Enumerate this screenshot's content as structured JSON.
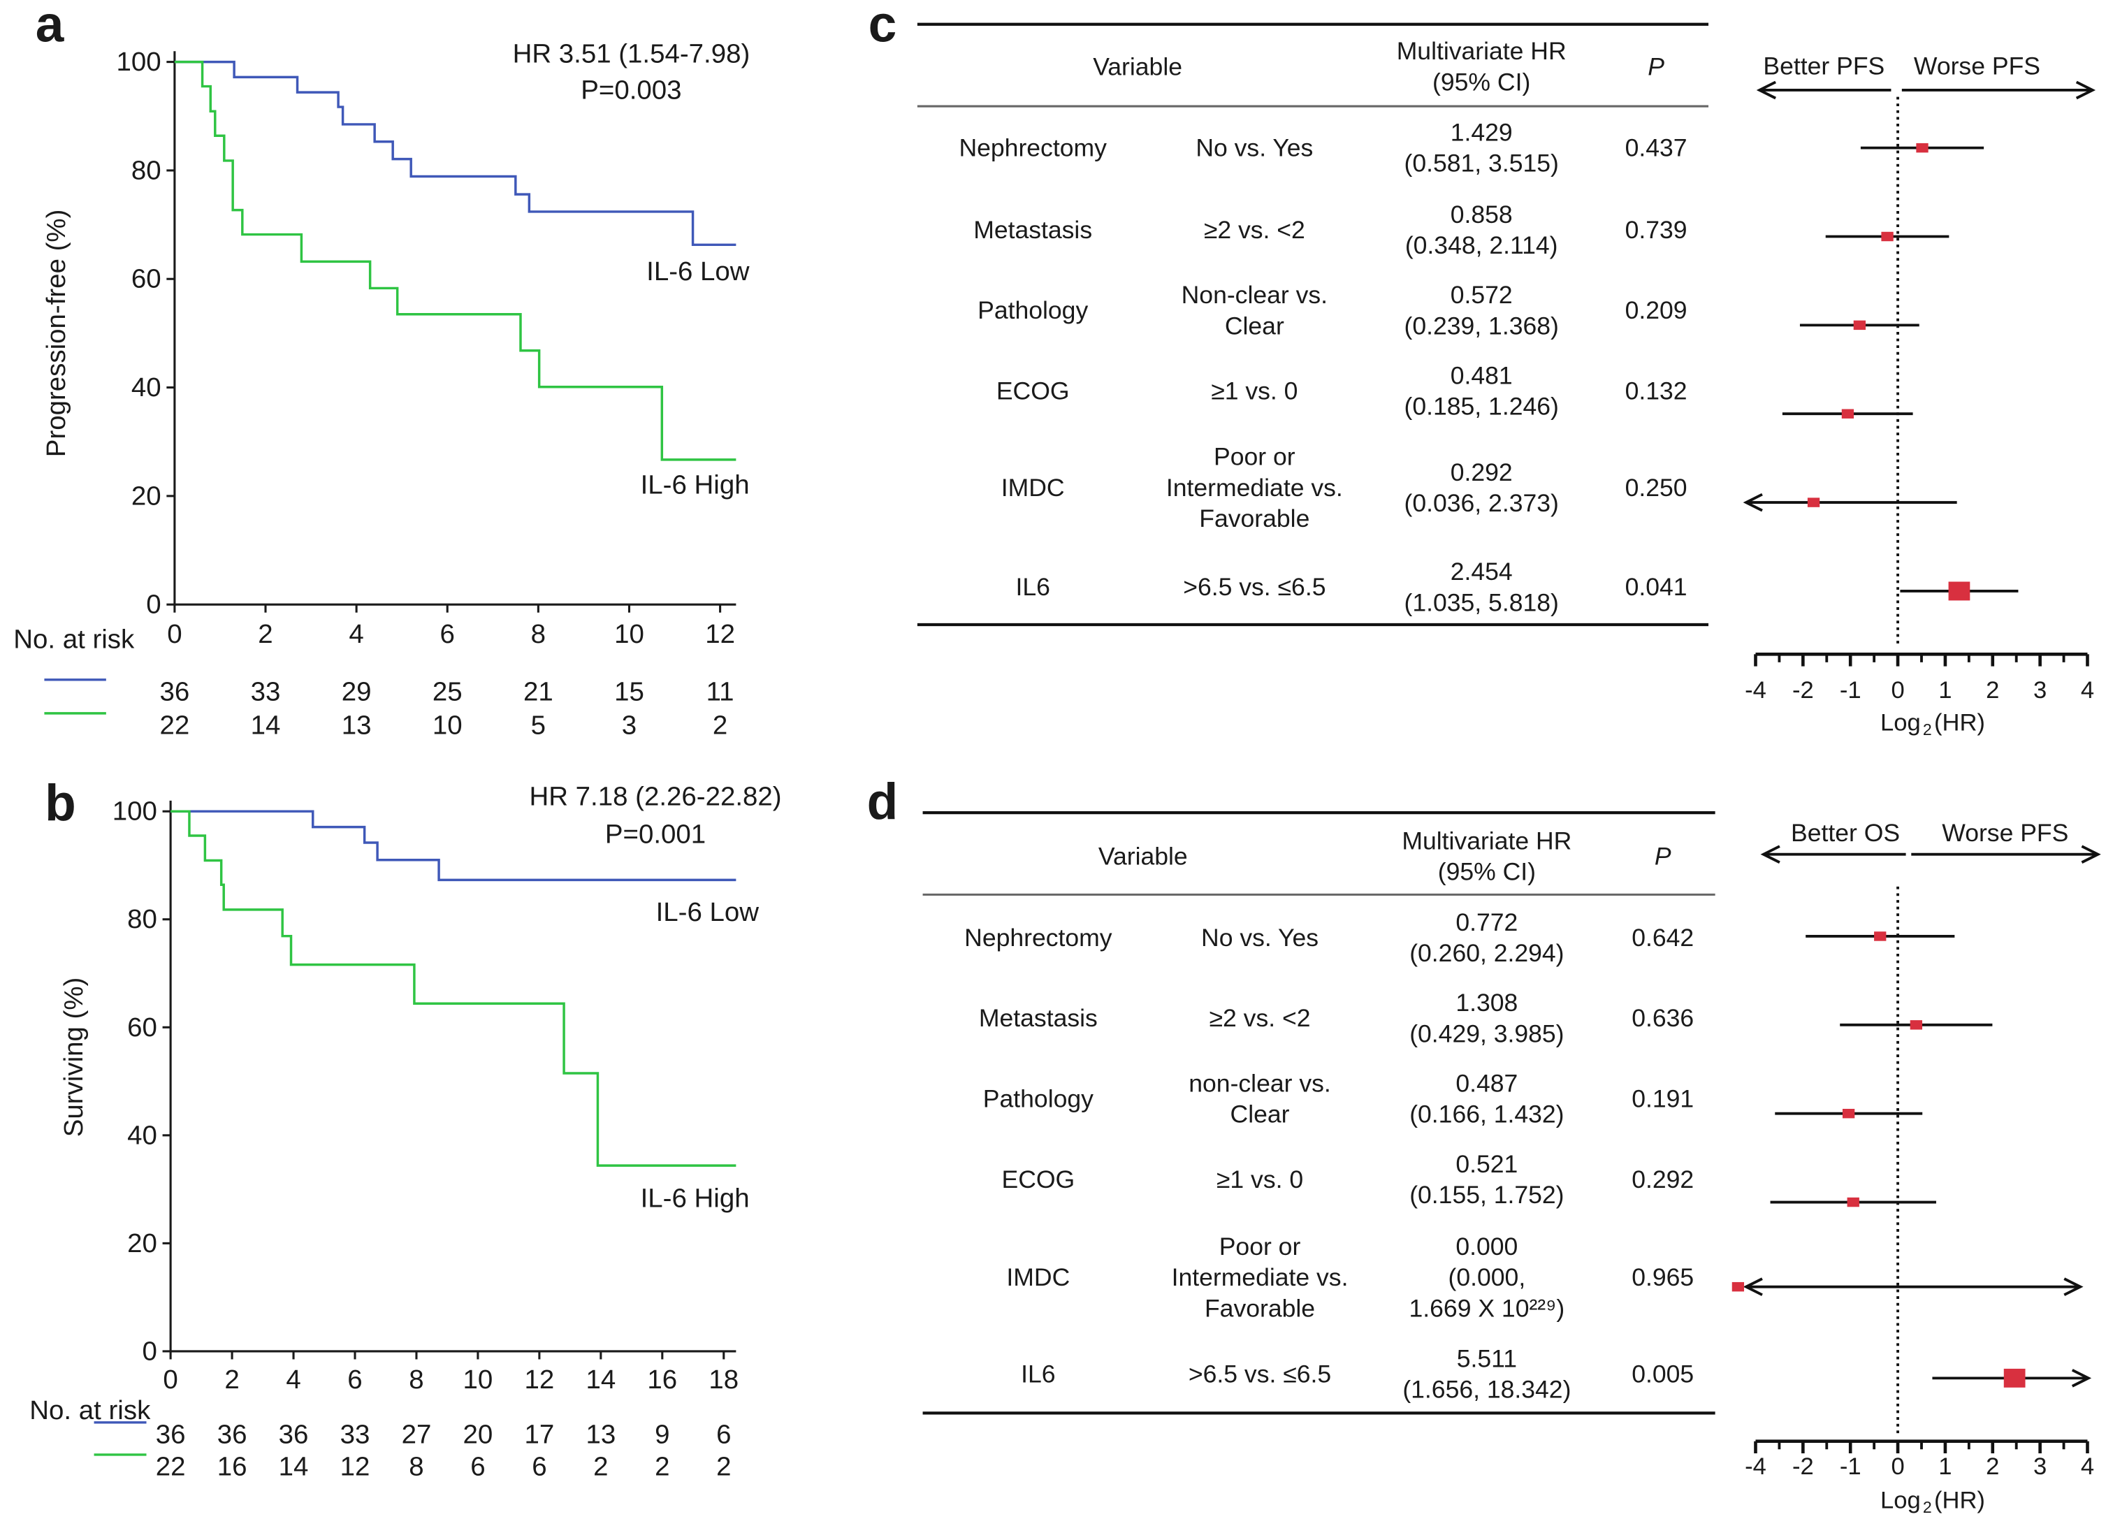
{
  "panel_labels": [
    "a",
    "b",
    "c",
    "d"
  ],
  "colors": {
    "low": "#3f58b8",
    "high": "#2fc443",
    "marker": "#d8303f",
    "axis": "#1a1a1a"
  },
  "chart_data": [
    {
      "type": "line",
      "panel": "a",
      "ylabel": "Progression-free (%)",
      "xlim": [
        0,
        12.35
      ],
      "ylim": [
        0,
        100
      ],
      "x_ticks": [
        "0",
        "2",
        "4",
        "6",
        "8",
        "10",
        "12"
      ],
      "y_ticks": [
        "0",
        "20",
        "40",
        "60",
        "80",
        "100"
      ],
      "annotation": [
        "HR 3.51 (1.54-7.98)",
        "P=0.003"
      ],
      "risk_title": "No. at risk",
      "series": [
        {
          "name": "IL-6 Low",
          "color_key": "low",
          "steps": [
            [
              0,
              100
            ],
            [
              1.31,
              97.2
            ],
            [
              2.7,
              94.4
            ],
            [
              3.6,
              91.7
            ],
            [
              3.7,
              88.5
            ],
            [
              4.4,
              85.3
            ],
            [
              4.8,
              82.1
            ],
            [
              5.2,
              78.9
            ],
            [
              7.5,
              75.6
            ],
            [
              7.8,
              72.4
            ],
            [
              11.4,
              66.3
            ]
          ],
          "at_risk": [
            "36",
            "33",
            "29",
            "25",
            "21",
            "15",
            "11"
          ]
        },
        {
          "name": "IL-6 High",
          "color_key": "high",
          "steps": [
            [
              0,
              100
            ],
            [
              0.61,
              95.5
            ],
            [
              0.79,
              90.9
            ],
            [
              0.89,
              86.4
            ],
            [
              1.09,
              81.8
            ],
            [
              1.28,
              72.7
            ],
            [
              1.49,
              68.2
            ],
            [
              2.79,
              63.2
            ],
            [
              4.3,
              58.3
            ],
            [
              4.9,
              53.5
            ],
            [
              7.61,
              46.8
            ],
            [
              8.02,
              40.1
            ],
            [
              10.72,
              26.7
            ]
          ],
          "at_risk": [
            "22",
            "14",
            "13",
            "10",
            "5",
            "3",
            "2"
          ]
        }
      ]
    },
    {
      "type": "line",
      "panel": "b",
      "ylabel": "Surviving (%)",
      "xlim": [
        0,
        18.4
      ],
      "ylim": [
        0,
        100
      ],
      "x_ticks": [
        "0",
        "2",
        "4",
        "6",
        "8",
        "10",
        "12",
        "14",
        "16",
        "18"
      ],
      "y_ticks": [
        "0",
        "20",
        "40",
        "60",
        "80",
        "100"
      ],
      "annotation": [
        "HR 7.18 (2.26-22.82)",
        "P=0.001"
      ],
      "risk_title": "No. at risk",
      "series": [
        {
          "name": "IL-6 Low",
          "color_key": "low",
          "steps": [
            [
              0,
              100
            ],
            [
              4.63,
              97.1
            ],
            [
              6.31,
              94.2
            ],
            [
              6.73,
              91.0
            ],
            [
              8.73,
              87.3
            ]
          ],
          "at_risk": [
            "36",
            "36",
            "36",
            "33",
            "27",
            "20",
            "17",
            "13",
            "9",
            "6"
          ]
        },
        {
          "name": "IL-6 High",
          "color_key": "high",
          "steps": [
            [
              0,
              100
            ],
            [
              0.61,
              95.5
            ],
            [
              1.12,
              90.9
            ],
            [
              1.65,
              86.4
            ],
            [
              1.73,
              81.8
            ],
            [
              3.64,
              76.9
            ],
            [
              3.92,
              71.6
            ],
            [
              7.93,
              64.4
            ],
            [
              12.8,
              51.5
            ],
            [
              13.9,
              34.4
            ]
          ],
          "at_risk": [
            "22",
            "16",
            "14",
            "12",
            "8",
            "6",
            "6",
            "2",
            "2",
            "2"
          ]
        }
      ]
    },
    {
      "type": "forest",
      "panel": "c",
      "headers": {
        "variable": "Variable",
        "hr": [
          "Multivariate HR",
          "(95% CI)"
        ],
        "p": "P"
      },
      "direction_labels": [
        "Better PFS",
        "Worse PFS"
      ],
      "x_tick_labels": [
        "-4",
        "-2",
        "-1",
        "0",
        "1",
        "2",
        "3",
        "4"
      ],
      "xlabel": "Log",
      "xlabel_sub": "2",
      "xlabel_tail": "(HR)",
      "rows": [
        {
          "variable": "Nephrectomy",
          "comparison": [
            "No vs. Yes"
          ],
          "hr_lines": [
            "1.429",
            "(0.581, 3.515)"
          ],
          "p": "0.437",
          "hr": 1.429,
          "lo": 0.581,
          "hi": 3.515,
          "big": false
        },
        {
          "variable": "Metastasis",
          "comparison": [
            "≥2 vs. <2"
          ],
          "hr_lines": [
            "0.858",
            "(0.348, 2.114)"
          ],
          "p": "0.739",
          "hr": 0.858,
          "lo": 0.348,
          "hi": 2.114,
          "big": false
        },
        {
          "variable": "Pathology",
          "comparison": [
            "Non-clear vs.",
            "Clear"
          ],
          "hr_lines": [
            "0.572",
            "(0.239, 1.368)"
          ],
          "p": "0.209",
          "hr": 0.572,
          "lo": 0.239,
          "hi": 1.368,
          "big": false
        },
        {
          "variable": "ECOG",
          "comparison": [
            "≥1 vs. 0"
          ],
          "hr_lines": [
            "0.481",
            "(0.185, 1.246)"
          ],
          "p": "0.132",
          "hr": 0.481,
          "lo": 0.185,
          "hi": 1.246,
          "big": false
        },
        {
          "variable": "IMDC",
          "comparison": [
            "Poor or",
            "Intermediate vs.",
            "Favorable"
          ],
          "hr_lines": [
            "0.292",
            "(0.036, 2.373)"
          ],
          "p": "0.250",
          "hr": 0.292,
          "lo": 0.036,
          "hi": 2.373,
          "big": false
        },
        {
          "variable": "IL6",
          "comparison": [
            ">6.5 vs. ≤6.5"
          ],
          "hr_lines": [
            "2.454",
            "(1.035, 5.818)"
          ],
          "p": "0.041",
          "hr": 2.454,
          "lo": 1.035,
          "hi": 5.818,
          "big": true
        }
      ]
    },
    {
      "type": "forest",
      "panel": "d",
      "headers": {
        "variable": "Variable",
        "hr": [
          "Multivariate HR",
          "(95% CI)"
        ],
        "p": "P"
      },
      "direction_labels": [
        "Better OS",
        "Worse PFS"
      ],
      "x_tick_labels": [
        "-4",
        "-2",
        "-1",
        "0",
        "1",
        "2",
        "3",
        "4"
      ],
      "xlabel": "Log",
      "xlabel_sub": "2",
      "xlabel_tail": "(HR)",
      "rows": [
        {
          "variable": "Nephrectomy",
          "comparison": [
            "No vs. Yes"
          ],
          "hr_lines": [
            "0.772",
            "(0.260, 2.294)"
          ],
          "p": "0.642",
          "hr": 0.772,
          "lo": 0.26,
          "hi": 2.294,
          "big": false
        },
        {
          "variable": "Metastasis",
          "comparison": [
            "≥2 vs. <2"
          ],
          "hr_lines": [
            "1.308",
            "(0.429, 3.985)"
          ],
          "p": "0.636",
          "hr": 1.308,
          "lo": 0.429,
          "hi": 3.985,
          "big": false
        },
        {
          "variable": "Pathology",
          "comparison": [
            "non-clear vs.",
            "Clear"
          ],
          "hr_lines": [
            "0.487",
            "(0.166, 1.432)"
          ],
          "p": "0.191",
          "hr": 0.487,
          "lo": 0.166,
          "hi": 1.432,
          "big": false
        },
        {
          "variable": "ECOG",
          "comparison": [
            "≥1 vs. 0"
          ],
          "hr_lines": [
            "0.521",
            "(0.155, 1.752)"
          ],
          "p": "0.292",
          "hr": 0.521,
          "lo": 0.155,
          "hi": 1.752,
          "big": false
        },
        {
          "variable": "IMDC",
          "comparison": [
            "Poor or",
            "Intermediate vs.",
            "Favorable"
          ],
          "hr_lines": [
            "0.000",
            "(0.000,",
            "1.669 X 10²²⁹)"
          ],
          "p": "0.965",
          "hr": 0,
          "lo": 0,
          "hi": 1.669e+229,
          "big": false
        },
        {
          "variable": "IL6",
          "comparison": [
            ">6.5 vs. ≤6.5"
          ],
          "hr_lines": [
            "5.511",
            "(1.656, 18.342)"
          ],
          "p": "0.005",
          "hr": 5.511,
          "lo": 1.656,
          "hi": 18.342,
          "big": true
        }
      ]
    }
  ]
}
